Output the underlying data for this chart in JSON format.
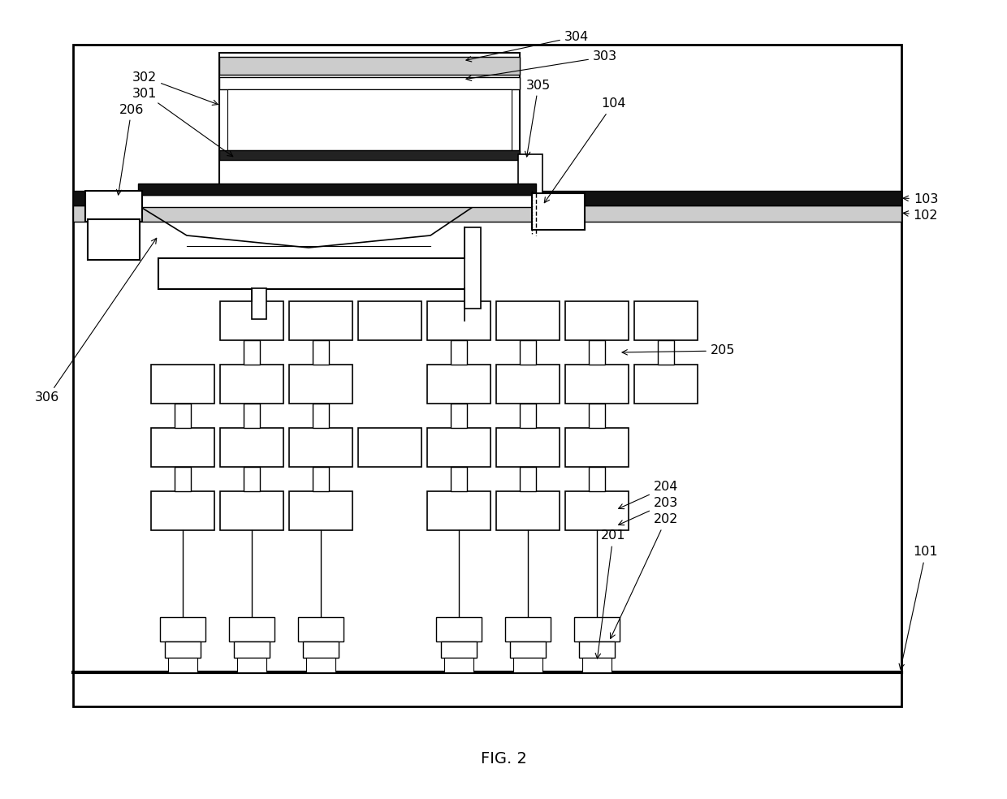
{
  "fig_label": "FIG. 2",
  "bg_color": "#ffffff",
  "lc": "#000000"
}
